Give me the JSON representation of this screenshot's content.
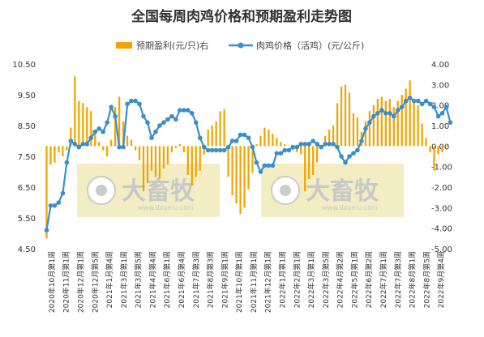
{
  "chart_data": {
    "type": "bar+line",
    "title": "全国每周肉鸡价格和预期盈利走势图",
    "legend": {
      "placement": "top-center"
    },
    "series": [
      {
        "name": "预期盈利(元/只)右",
        "type": "bar",
        "axis": "right",
        "color": "#f0a500",
        "values": [
          -4.5,
          -0.9,
          -0.8,
          -0.3,
          -0.5,
          -0.2,
          0.9,
          3.4,
          2.2,
          2.1,
          1.9,
          1.7,
          0.8,
          0.2,
          -0.2,
          -0.5,
          0.3,
          1.9,
          2.4,
          1.2,
          0.5,
          0.3,
          -0.2,
          -0.7,
          -2.2,
          -1.8,
          -1.2,
          -1.5,
          -1.6,
          -1.1,
          -0.9,
          -0.3,
          -0.1,
          0.1,
          -0.3,
          -1.4,
          -1.9,
          -1.5,
          -1.2,
          -0.4,
          0.8,
          1.0,
          1.2,
          1.7,
          1.8,
          -1.5,
          -2.4,
          -2.8,
          -3.3,
          -3.0,
          -2.1,
          -1.3,
          0.1,
          0.5,
          0.9,
          0.8,
          0.6,
          0.4,
          0.2,
          0.1,
          0.0,
          -0.2,
          -0.3,
          -0.4,
          -2.2,
          -1.6,
          -1.4,
          -0.8,
          -0.1,
          0.5,
          0.8,
          1.0,
          2.1,
          2.9,
          3.0,
          2.6,
          1.6,
          1.4,
          0.7,
          1.2,
          1.7,
          2.0,
          2.3,
          2.4,
          2.2,
          2.3,
          1.9,
          2.2,
          2.5,
          2.8,
          3.2,
          2.2,
          2.0,
          1.1,
          0.4,
          -0.3,
          -1.2,
          -0.4,
          -0.3,
          0.1
        ]
      },
      {
        "name": "肉鸡价格（活鸡）(元/公斤)",
        "type": "line",
        "axis": "left",
        "color": "#3a8fc8",
        "values": [
          5.1,
          5.9,
          5.9,
          6.0,
          6.3,
          7.3,
          8.0,
          7.9,
          7.8,
          7.9,
          7.9,
          8.1,
          8.3,
          8.4,
          8.3,
          8.6,
          9.1,
          8.8,
          7.8,
          7.8,
          9.2,
          9.3,
          9.3,
          9.2,
          8.8,
          8.6,
          8.1,
          8.3,
          8.5,
          8.6,
          8.7,
          8.8,
          8.7,
          9.0,
          9.0,
          9.0,
          8.9,
          8.6,
          8.1,
          7.8,
          7.7,
          7.7,
          7.7,
          7.7,
          7.7,
          7.8,
          8.0,
          8.0,
          8.2,
          8.2,
          8.1,
          7.8,
          7.3,
          7.0,
          7.2,
          7.2,
          7.2,
          7.6,
          7.6,
          7.7,
          7.7,
          7.8,
          7.8,
          7.9,
          7.9,
          7.9,
          8.0,
          7.9,
          7.8,
          7.9,
          7.9,
          7.9,
          7.8,
          7.5,
          7.3,
          7.5,
          7.6,
          7.7,
          8.0,
          8.4,
          8.6,
          8.8,
          8.9,
          9.0,
          8.9,
          8.9,
          8.8,
          9.0,
          9.1,
          9.3,
          9.4,
          9.3,
          9.3,
          9.2,
          9.3,
          9.2,
          9.1,
          8.8,
          8.9,
          9.1,
          8.6
        ]
      }
    ],
    "left_axis": {
      "ylim": [
        4.5,
        10.5
      ],
      "ticks": [
        "4.50",
        "5.50",
        "6.50",
        "7.50",
        "8.50",
        "9.50",
        "10.50"
      ]
    },
    "right_axis": {
      "ylim": [
        -5.0,
        4.0
      ],
      "ticks": [
        "-5.00",
        "-4.00",
        "-3.00",
        "-2.00",
        "-1.00",
        "0.00",
        "1.00",
        "2.00",
        "3.00",
        "4.00"
      ]
    },
    "x_tick_labels": [
      "2020年10月第1周",
      "2020年11月第1周",
      "2020年12月第1周",
      "2020年12月第5周",
      "2021年1月第4周",
      "2021年3月第1周",
      "2021年3月第5周",
      "2021年4月第4周",
      "2021年6月第1周",
      "2021年6月第4周",
      "2021年7月第3周",
      "2021年8月第3周",
      "2021年9月第1周",
      "2021年10月第1周",
      "2021年11月第1周",
      "2021年12月第1周",
      "2022年1月第1周",
      "2022年2月第1周",
      "2022年3月第1周",
      "2022年3月第5周",
      "2022年4月第2周",
      "2022年5月第1周",
      "2022年6月第2周",
      "2022年7月第1周",
      "2022年7月第3周",
      "2022年8月第1周",
      "2022年8月第5周",
      "2022年9月第4周"
    ]
  },
  "watermark": {
    "brand": "大畜牧",
    "url": "www.dxumu.com"
  }
}
